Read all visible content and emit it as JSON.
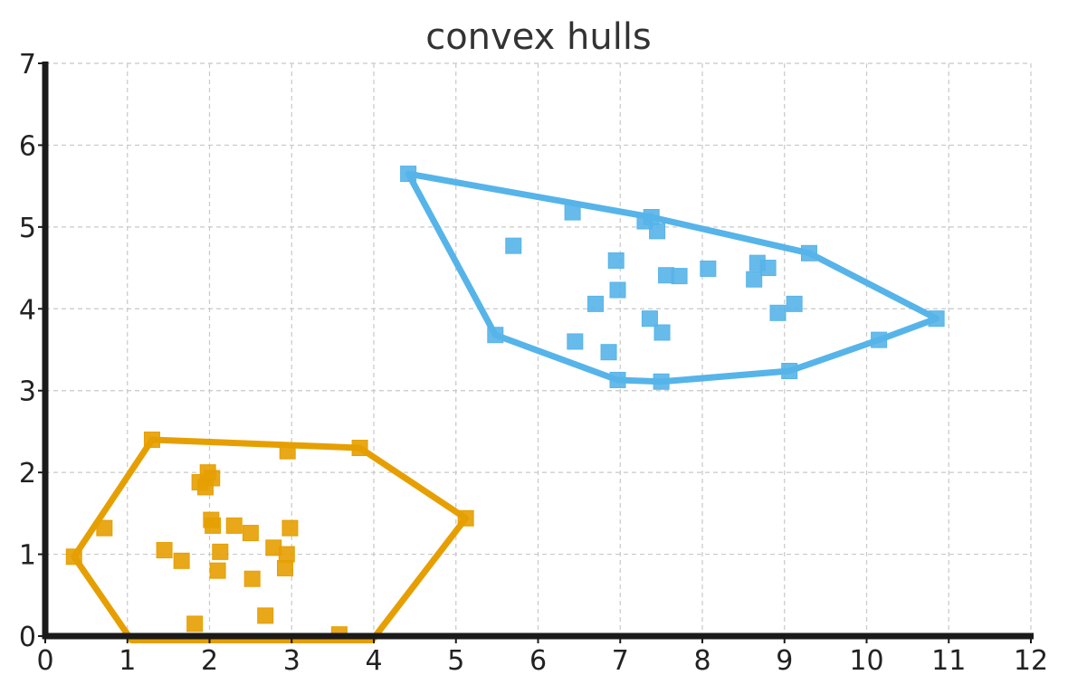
{
  "chart_data": {
    "type": "scatter",
    "title": "convex hulls",
    "xlabel": "",
    "ylabel": "",
    "xlim": [
      0,
      12
    ],
    "ylim": [
      0,
      7
    ],
    "xticks": [
      0,
      1,
      2,
      3,
      4,
      5,
      6,
      7,
      8,
      9,
      10,
      11,
      12
    ],
    "yticks": [
      0,
      1,
      2,
      3,
      4,
      5,
      6,
      7
    ],
    "grid": true,
    "marker": "square",
    "series": [
      {
        "color": "#E69F00",
        "points": [
          [
            0.35,
            0.97
          ],
          [
            0.72,
            1.32
          ],
          [
            1.3,
            2.4
          ],
          [
            1.45,
            1.05
          ],
          [
            1.66,
            0.92
          ],
          [
            1.82,
            0.15
          ],
          [
            1.88,
            1.88
          ],
          [
            1.95,
            1.82
          ],
          [
            1.98,
            2.0
          ],
          [
            2.03,
            1.93
          ],
          [
            2.02,
            1.42
          ],
          [
            2.04,
            1.35
          ],
          [
            2.1,
            0.8
          ],
          [
            2.13,
            1.03
          ],
          [
            2.3,
            1.35
          ],
          [
            2.5,
            1.26
          ],
          [
            2.52,
            0.7
          ],
          [
            2.68,
            0.25
          ],
          [
            2.78,
            1.08
          ],
          [
            2.92,
            0.83
          ],
          [
            2.94,
            1.0
          ],
          [
            2.95,
            2.26
          ],
          [
            2.98,
            1.32
          ],
          [
            3.58,
            0.02
          ],
          [
            3.83,
            2.3
          ],
          [
            5.12,
            1.44
          ]
        ],
        "hull": [
          [
            0.35,
            0.97
          ],
          [
            1.3,
            2.4
          ],
          [
            3.83,
            2.3
          ],
          [
            5.12,
            1.44
          ],
          [
            3.98,
            -0.05
          ],
          [
            1.05,
            -0.05
          ],
          [
            0.35,
            0.97
          ]
        ]
      },
      {
        "color": "#56B4E9",
        "points": [
          [
            4.42,
            5.65
          ],
          [
            5.48,
            3.68
          ],
          [
            5.7,
            4.77
          ],
          [
            6.42,
            5.18
          ],
          [
            6.45,
            3.6
          ],
          [
            6.7,
            4.06
          ],
          [
            6.86,
            3.47
          ],
          [
            6.95,
            4.59
          ],
          [
            6.97,
            4.23
          ],
          [
            6.97,
            3.13
          ],
          [
            7.3,
            5.07
          ],
          [
            7.38,
            5.12
          ],
          [
            7.36,
            3.88
          ],
          [
            7.45,
            4.95
          ],
          [
            7.5,
            3.11
          ],
          [
            7.51,
            3.71
          ],
          [
            7.56,
            4.41
          ],
          [
            7.72,
            4.4
          ],
          [
            8.07,
            4.49
          ],
          [
            8.63,
            4.36
          ],
          [
            8.67,
            4.56
          ],
          [
            8.8,
            4.5
          ],
          [
            8.92,
            3.95
          ],
          [
            9.06,
            3.24
          ],
          [
            9.12,
            4.06
          ],
          [
            9.3,
            4.68
          ],
          [
            10.15,
            3.62
          ],
          [
            10.85,
            3.88
          ]
        ],
        "hull": [
          [
            4.42,
            5.65
          ],
          [
            7.38,
            5.12
          ],
          [
            9.3,
            4.68
          ],
          [
            10.85,
            3.88
          ],
          [
            10.15,
            3.62
          ],
          [
            9.06,
            3.24
          ],
          [
            7.5,
            3.11
          ],
          [
            6.97,
            3.13
          ],
          [
            5.48,
            3.68
          ],
          [
            4.42,
            5.65
          ]
        ]
      }
    ]
  }
}
